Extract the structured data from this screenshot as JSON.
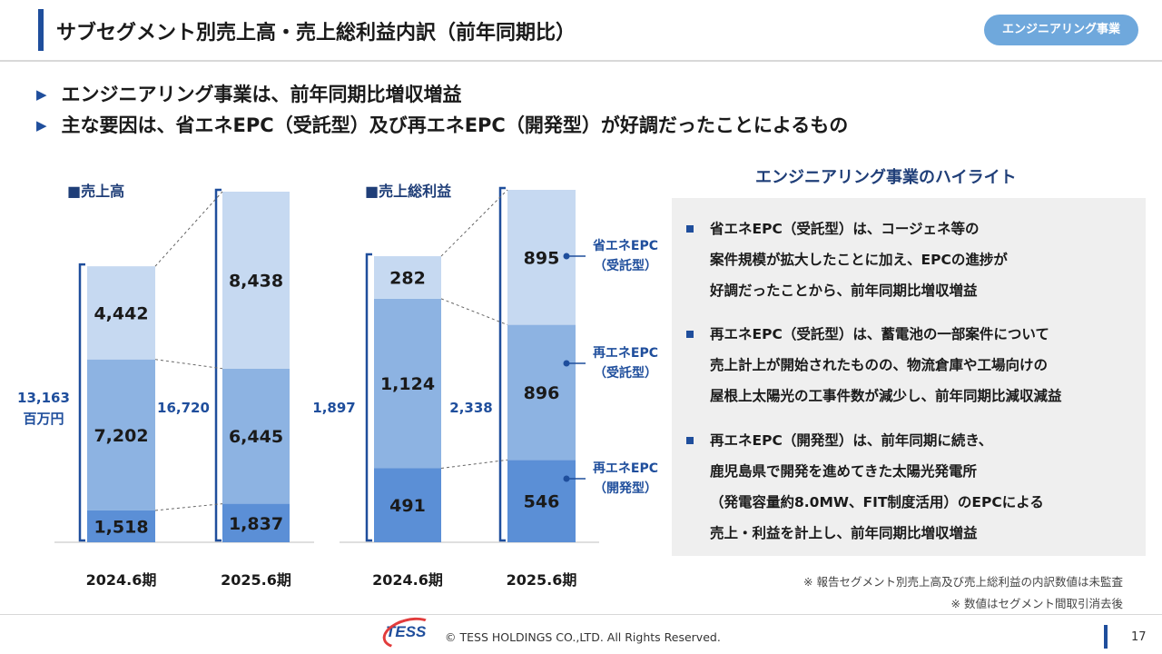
{
  "header": {
    "title": "サブセグメント別売上高・売上総利益内訳（前年同期比）",
    "badge": "エンジニアリング事業"
  },
  "bullets": [
    "エンジニアリング事業は、前年同期比増収増益",
    "主な要因は、省エネEPC（受託型）及び再エネEPC（開発型）が好調だったことによるもの"
  ],
  "chart_data": [
    {
      "type": "bar",
      "title": "■売上高",
      "categories": [
        "2024.6期",
        "2025.6期"
      ],
      "unit_label": "百万円",
      "totals": [
        "13,163",
        "16,720"
      ],
      "series": [
        {
          "name": "再エネEPC（開発型）",
          "values": [
            1518,
            1837
          ]
        },
        {
          "name": "再エネEPC（受託型）",
          "values": [
            7202,
            6445
          ]
        },
        {
          "name": "省エネEPC（受託型）",
          "values": [
            4442,
            8438
          ]
        }
      ]
    },
    {
      "type": "bar",
      "title": "■売上総利益",
      "categories": [
        "2024.6期",
        "2025.6期"
      ],
      "totals": [
        "1,897",
        "2,338"
      ],
      "series": [
        {
          "name": "再エネEPC（開発型）",
          "values": [
            491,
            546
          ]
        },
        {
          "name": "再エネEPC（受託型）",
          "values": [
            1124,
            896
          ]
        },
        {
          "name": "省エネEPC（受託型）",
          "values": [
            282,
            895
          ]
        }
      ]
    }
  ],
  "legend": [
    {
      "line1": "省エネEPC",
      "line2": "（受託型）"
    },
    {
      "line1": "再エネEPC",
      "line2": "（受託型）"
    },
    {
      "line1": "再エネEPC",
      "line2": "（開発型）"
    }
  ],
  "colors": {
    "dark": "#5b8fd6",
    "mid": "#8db3e2",
    "light": "#c6d9f1",
    "accent": "#1f4e9c",
    "bracket": "#1f4e9c"
  },
  "highlights": {
    "title": "エンジニアリング事業のハイライト",
    "items": [
      [
        "省エネEPC（受託型）は、コージェネ等の",
        "案件規模が拡大したことに加え、EPCの進捗が",
        "好調だったことから、前年同期比増収増益"
      ],
      [
        "再エネEPC（受託型）は、蓄電池の一部案件について",
        "売上計上が開始されたものの、物流倉庫や工場向けの",
        "屋根上太陽光の工事件数が減少し、前年同期比減収減益"
      ],
      [
        "再エネEPC（開発型）は、前年同期に続き、",
        "鹿児島県で開発を進めてきた太陽光発電所",
        "（発電容量約8.0MW、FIT制度活用）のEPCによる",
        "売上・利益を計上し、前年同期比増収増益"
      ]
    ]
  },
  "notes": [
    "※ 報告セグメント別売上高及び売上総利益の内訳数値は未監査",
    "※ 数値はセグメント間取引消去後"
  ],
  "footer": {
    "logo": "TESS",
    "copyright": "© TESS HOLDINGS CO.,LTD. All Rights Reserved.",
    "page": "17"
  }
}
